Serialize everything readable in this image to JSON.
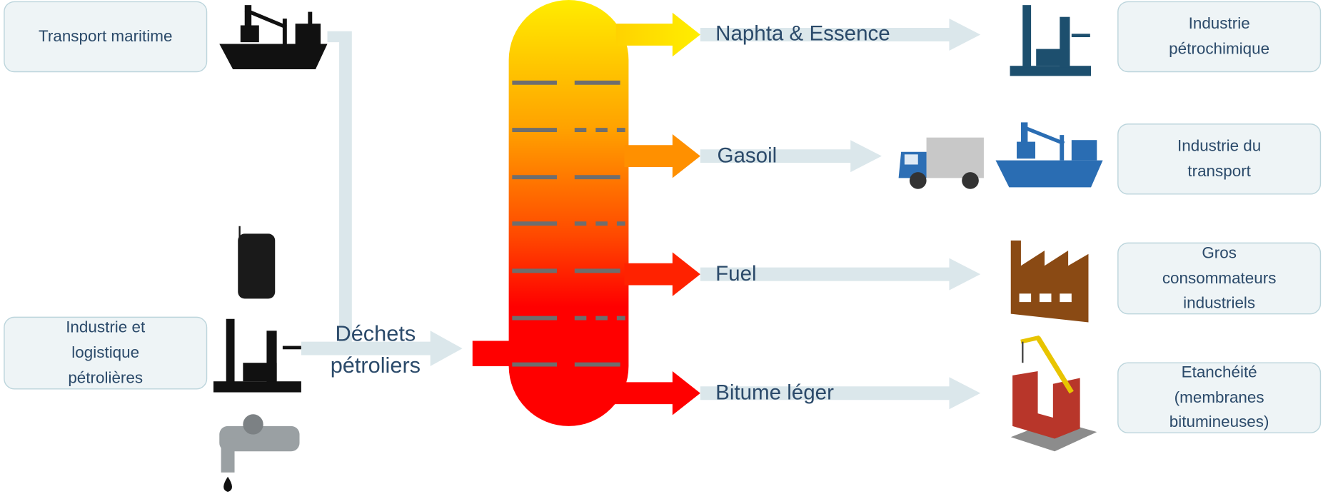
{
  "sources": [
    {
      "label": [
        "Transport maritime"
      ]
    },
    {
      "label": [
        "Industrie et",
        "logistique",
        "pétrolières"
      ]
    }
  ],
  "input": {
    "label": [
      "Déchets",
      "pétroliers"
    ]
  },
  "outputs": [
    {
      "label": "Naphta & Essence",
      "destination": [
        "Industrie",
        "pétrochimique"
      ]
    },
    {
      "label": "Gasoil",
      "destination": [
        "Industrie du",
        "transport"
      ]
    },
    {
      "label": "Fuel",
      "destination": [
        "Gros",
        "consommateurs",
        "industriels"
      ]
    },
    {
      "label": "Bitume léger",
      "destination": [
        "Etanchéité",
        "(membranes",
        "bitumineuses)"
      ]
    }
  ]
}
